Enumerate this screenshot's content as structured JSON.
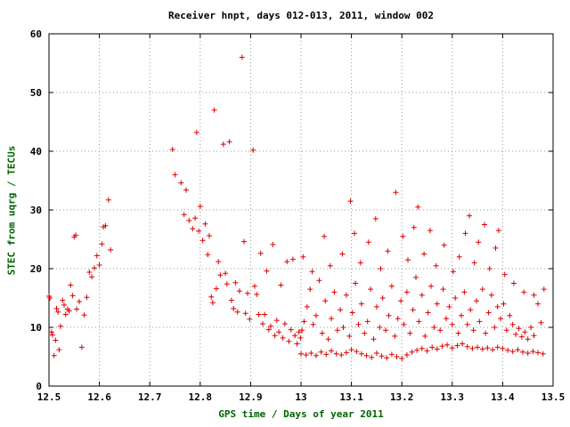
{
  "chart_data": {
    "type": "scatter",
    "title": "Receiver hnpt, days 012-013, 2011, window 002",
    "xlabel": "GPS time / Days of year 2011",
    "ylabel": "STEC from uqrg / TECUs",
    "xlim": [
      12.5,
      13.5
    ],
    "ylim": [
      0,
      60
    ],
    "xticks": [
      12.5,
      12.6,
      12.7,
      12.8,
      12.9,
      13.0,
      13.1,
      13.2,
      13.3,
      13.4,
      13.5
    ],
    "xtick_labels": [
      "12.5",
      "12.6",
      "12.7",
      "12.8",
      "12.9",
      "13",
      "13.1",
      "13.2",
      "13.3",
      "13.4",
      "13.5"
    ],
    "yticks": [
      0,
      10,
      20,
      30,
      40,
      50,
      60
    ],
    "ytick_labels": [
      "0",
      "10",
      "20",
      "30",
      "40",
      "50",
      "60"
    ],
    "grid": true,
    "legend": "none",
    "marker": "plus",
    "colors": {
      "marker": "#dd0000",
      "grid": "#999999",
      "border": "#000000",
      "title": "#000000",
      "label": "#006400",
      "ticks": "#000000",
      "background": "#ffffff"
    },
    "points": [
      [
        12.5,
        15.3
      ],
      [
        12.502,
        15.0
      ],
      [
        12.505,
        9.2
      ],
      [
        12.507,
        8.7
      ],
      [
        12.51,
        5.2
      ],
      [
        12.513,
        7.8
      ],
      [
        12.515,
        13.2
      ],
      [
        12.518,
        12.6
      ],
      [
        12.52,
        6.2
      ],
      [
        12.523,
        10.2
      ],
      [
        12.527,
        14.6
      ],
      [
        12.53,
        13.8
      ],
      [
        12.533,
        12.2
      ],
      [
        12.537,
        13.1
      ],
      [
        12.54,
        12.8
      ],
      [
        12.543,
        17.2
      ],
      [
        12.547,
        15.4
      ],
      [
        12.55,
        25.4
      ],
      [
        12.553,
        25.7
      ],
      [
        12.555,
        13.1
      ],
      [
        12.56,
        14.4
      ],
      [
        12.565,
        6.6
      ],
      [
        12.57,
        12.1
      ],
      [
        12.575,
        15.1
      ],
      [
        12.58,
        19.4
      ],
      [
        12.585,
        18.6
      ],
      [
        12.59,
        20.1
      ],
      [
        12.595,
        22.2
      ],
      [
        12.6,
        20.6
      ],
      [
        12.605,
        24.2
      ],
      [
        12.608,
        27.1
      ],
      [
        12.612,
        27.3
      ],
      [
        12.618,
        31.7
      ],
      [
        12.622,
        23.2
      ],
      [
        12.745,
        40.3
      ],
      [
        12.75,
        36.0
      ],
      [
        12.762,
        34.6
      ],
      [
        12.768,
        29.2
      ],
      [
        12.772,
        33.4
      ],
      [
        12.778,
        28.2
      ],
      [
        12.785,
        26.8
      ],
      [
        12.79,
        28.6
      ],
      [
        12.793,
        43.2
      ],
      [
        12.797,
        26.4
      ],
      [
        12.8,
        30.6
      ],
      [
        12.805,
        24.8
      ],
      [
        12.81,
        27.6
      ],
      [
        12.815,
        22.4
      ],
      [
        12.818,
        25.6
      ],
      [
        12.822,
        15.2
      ],
      [
        12.825,
        14.2
      ],
      [
        12.828,
        47.0
      ],
      [
        12.832,
        16.6
      ],
      [
        12.836,
        21.2
      ],
      [
        12.84,
        18.9
      ],
      [
        12.846,
        41.2
      ],
      [
        12.85,
        19.2
      ],
      [
        12.853,
        17.4
      ],
      [
        12.858,
        41.6
      ],
      [
        12.862,
        14.6
      ],
      [
        12.866,
        13.2
      ],
      [
        12.87,
        17.6
      ],
      [
        12.874,
        12.6
      ],
      [
        12.878,
        16.2
      ],
      [
        12.883,
        56.0
      ],
      [
        12.887,
        24.6
      ],
      [
        12.89,
        12.4
      ],
      [
        12.894,
        15.8
      ],
      [
        12.898,
        11.4
      ],
      [
        12.905,
        40.2
      ],
      [
        12.908,
        17.0
      ],
      [
        12.912,
        15.6
      ],
      [
        12.916,
        12.2
      ],
      [
        12.92,
        22.6
      ],
      [
        12.924,
        10.6
      ],
      [
        12.928,
        12.2
      ],
      [
        12.932,
        19.6
      ],
      [
        12.936,
        9.6
      ],
      [
        12.94,
        10.2
      ],
      [
        12.944,
        24.1
      ],
      [
        12.948,
        8.6
      ],
      [
        12.952,
        11.2
      ],
      [
        12.956,
        9.2
      ],
      [
        12.96,
        17.2
      ],
      [
        12.964,
        8.2
      ],
      [
        12.968,
        10.6
      ],
      [
        12.972,
        21.2
      ],
      [
        12.976,
        7.6
      ],
      [
        12.98,
        9.6
      ],
      [
        12.984,
        21.6
      ],
      [
        12.988,
        8.6
      ],
      [
        12.992,
        7.2
      ],
      [
        12.996,
        9.2
      ],
      [
        12.999,
        8.2
      ],
      [
        13.0,
        5.5
      ],
      [
        13.01,
        5.3
      ],
      [
        13.02,
        5.6
      ],
      [
        13.03,
        5.2
      ],
      [
        13.04,
        5.8
      ],
      [
        13.05,
        5.4
      ],
      [
        13.06,
        6.0
      ],
      [
        13.07,
        5.5
      ],
      [
        13.08,
        5.3
      ],
      [
        13.09,
        5.7
      ],
      [
        13.1,
        6.2
      ],
      [
        13.11,
        5.9
      ],
      [
        13.12,
        5.5
      ],
      [
        13.13,
        5.2
      ],
      [
        13.14,
        4.9
      ],
      [
        13.15,
        5.6
      ],
      [
        13.16,
        5.1
      ],
      [
        13.17,
        4.8
      ],
      [
        13.18,
        5.4
      ],
      [
        13.19,
        5.0
      ],
      [
        13.2,
        4.7
      ],
      [
        13.21,
        5.3
      ],
      [
        13.22,
        5.8
      ],
      [
        13.23,
        6.1
      ],
      [
        13.24,
        6.4
      ],
      [
        13.25,
        6.0
      ],
      [
        13.26,
        6.6
      ],
      [
        13.27,
        6.3
      ],
      [
        13.28,
        6.8
      ],
      [
        13.29,
        7.0
      ],
      [
        13.3,
        6.5
      ],
      [
        13.31,
        6.9
      ],
      [
        13.32,
        7.2
      ],
      [
        13.33,
        6.7
      ],
      [
        13.34,
        6.4
      ],
      [
        13.35,
        6.6
      ],
      [
        13.36,
        6.3
      ],
      [
        13.37,
        6.5
      ],
      [
        13.38,
        6.2
      ],
      [
        13.39,
        6.6
      ],
      [
        13.4,
        6.4
      ],
      [
        13.41,
        6.1
      ],
      [
        13.42,
        5.9
      ],
      [
        13.43,
        6.2
      ],
      [
        13.44,
        5.8
      ],
      [
        13.45,
        5.6
      ],
      [
        13.46,
        5.9
      ],
      [
        13.47,
        5.7
      ],
      [
        13.48,
        5.5
      ],
      [
        13.002,
        9.5
      ],
      [
        13.006,
        11.0
      ],
      [
        13.012,
        13.5
      ],
      [
        13.018,
        16.5
      ],
      [
        13.024,
        10.5
      ],
      [
        13.03,
        12.0
      ],
      [
        13.036,
        18.0
      ],
      [
        13.042,
        9.0
      ],
      [
        13.048,
        14.5
      ],
      [
        13.054,
        8.0
      ],
      [
        13.06,
        11.5
      ],
      [
        13.066,
        16.0
      ],
      [
        13.072,
        9.5
      ],
      [
        13.078,
        13.0
      ],
      [
        13.084,
        10.0
      ],
      [
        13.09,
        15.5
      ],
      [
        13.096,
        8.5
      ],
      [
        13.102,
        12.5
      ],
      [
        13.108,
        17.5
      ],
      [
        13.114,
        10.5
      ],
      [
        13.12,
        14.0
      ],
      [
        13.126,
        9.0
      ],
      [
        13.132,
        11.0
      ],
      [
        13.138,
        16.5
      ],
      [
        13.144,
        8.0
      ],
      [
        13.15,
        13.5
      ],
      [
        13.156,
        10.0
      ],
      [
        13.162,
        15.0
      ],
      [
        13.168,
        9.5
      ],
      [
        13.174,
        12.0
      ],
      [
        13.18,
        17.0
      ],
      [
        13.186,
        8.5
      ],
      [
        13.192,
        11.5
      ],
      [
        13.198,
        14.5
      ],
      [
        13.204,
        10.5
      ],
      [
        13.21,
        16.0
      ],
      [
        13.216,
        9.0
      ],
      [
        13.222,
        13.0
      ],
      [
        13.228,
        18.5
      ],
      [
        13.234,
        11.0
      ],
      [
        13.24,
        15.5
      ],
      [
        13.246,
        8.5
      ],
      [
        13.252,
        12.5
      ],
      [
        13.258,
        17.0
      ],
      [
        13.264,
        10.0
      ],
      [
        13.27,
        14.0
      ],
      [
        13.276,
        9.5
      ],
      [
        13.282,
        16.5
      ],
      [
        13.288,
        11.5
      ],
      [
        13.294,
        13.5
      ],
      [
        13.3,
        10.5
      ],
      [
        13.306,
        15.0
      ],
      [
        13.312,
        9.0
      ],
      [
        13.318,
        12.0
      ],
      [
        13.324,
        16.0
      ],
      [
        13.33,
        10.5
      ],
      [
        13.336,
        13.0
      ],
      [
        13.342,
        9.5
      ],
      [
        13.348,
        14.5
      ],
      [
        13.354,
        11.0
      ],
      [
        13.36,
        16.5
      ],
      [
        13.366,
        9.0
      ],
      [
        13.372,
        12.5
      ],
      [
        13.378,
        15.5
      ],
      [
        13.384,
        10.0
      ],
      [
        13.39,
        13.5
      ],
      [
        13.396,
        11.5
      ],
      [
        13.402,
        14.0
      ],
      [
        13.408,
        9.5
      ],
      [
        13.414,
        12.0
      ],
      [
        13.42,
        10.5
      ],
      [
        13.426,
        8.8
      ],
      [
        13.432,
        9.8
      ],
      [
        13.438,
        8.4
      ],
      [
        13.444,
        9.2
      ],
      [
        13.45,
        8.0
      ],
      [
        13.456,
        10.0
      ],
      [
        13.462,
        8.6
      ],
      [
        13.47,
        14.0
      ],
      [
        13.476,
        10.8
      ],
      [
        13.004,
        22.0
      ],
      [
        13.022,
        19.5
      ],
      [
        13.046,
        25.5
      ],
      [
        13.058,
        20.5
      ],
      [
        13.082,
        22.5
      ],
      [
        13.098,
        31.5
      ],
      [
        13.106,
        26.0
      ],
      [
        13.118,
        21.0
      ],
      [
        13.134,
        24.5
      ],
      [
        13.148,
        28.5
      ],
      [
        13.158,
        20.0
      ],
      [
        13.172,
        23.0
      ],
      [
        13.188,
        33.0
      ],
      [
        13.202,
        25.5
      ],
      [
        13.212,
        21.5
      ],
      [
        13.224,
        27.0
      ],
      [
        13.232,
        30.5
      ],
      [
        13.244,
        22.5
      ],
      [
        13.256,
        26.5
      ],
      [
        13.268,
        20.5
      ],
      [
        13.284,
        24.0
      ],
      [
        13.302,
        19.5
      ],
      [
        13.314,
        22.0
      ],
      [
        13.326,
        26.0
      ],
      [
        13.334,
        29.0
      ],
      [
        13.344,
        21.0
      ],
      [
        13.352,
        24.5
      ],
      [
        13.364,
        27.5
      ],
      [
        13.374,
        20.0
      ],
      [
        13.386,
        23.5
      ],
      [
        13.392,
        26.5
      ],
      [
        13.404,
        19.0
      ],
      [
        13.422,
        17.5
      ],
      [
        13.442,
        16.0
      ],
      [
        13.462,
        15.5
      ],
      [
        13.482,
        16.5
      ]
    ]
  }
}
